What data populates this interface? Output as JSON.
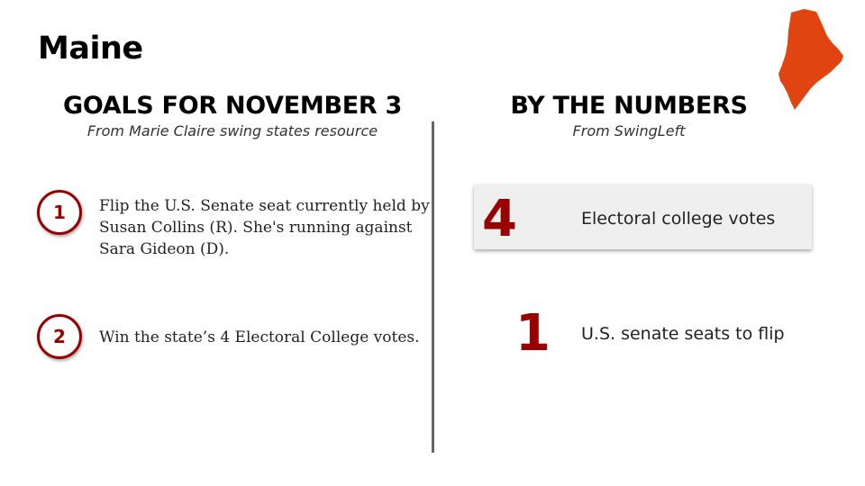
{
  "slide": {
    "title": "Maine",
    "state_map_icon": "maine-state-map-icon",
    "accent_color": "#990000",
    "map_color": "#e04410"
  },
  "goals": {
    "heading": "GOALS FOR NOVEMBER 3",
    "subheading": "From Marie Claire swing states resource",
    "items": [
      {
        "number": "1",
        "text": "Flip the U.S. Senate seat currently held by Susan Collins (R). She's running against Sara Gideon (D)."
      },
      {
        "number": "2",
        "text": "Win the state’s 4 Electoral College votes."
      }
    ]
  },
  "numbers": {
    "heading": "BY THE NUMBERS",
    "subheading": "From SwingLeft",
    "stats": [
      {
        "value": "4",
        "label": "Electoral college votes"
      },
      {
        "value": "1",
        "label": "U.S. senate seats to flip"
      }
    ]
  }
}
